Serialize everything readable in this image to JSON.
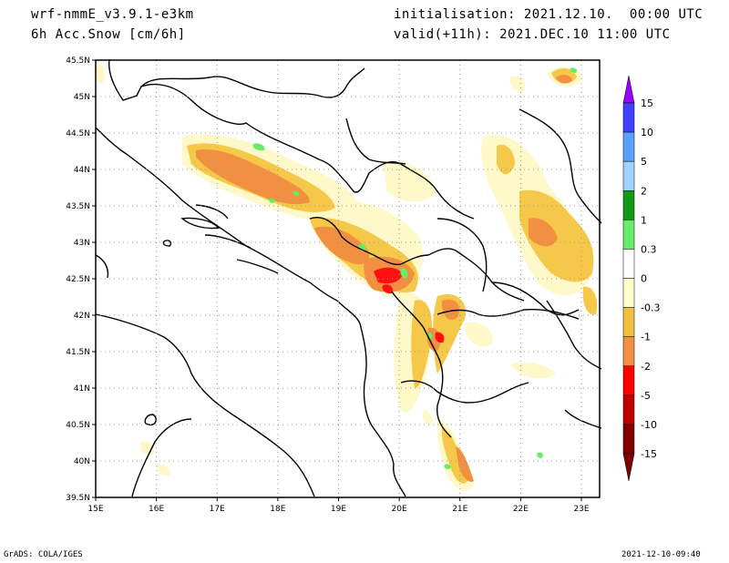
{
  "header": {
    "model": "wrf-nmmE_v3.9.1-e3km",
    "field": "6h Acc.Snow [cm/6h]",
    "init": "initialisation: 2021.12.10.  00:00 UTC",
    "valid": "valid(+11h): 2021.DEC.10 11:00 UTC"
  },
  "footer": {
    "left": "GrADS: COLA/IGES",
    "right": "2021-12-10-09:40"
  },
  "map": {
    "lat_labels": [
      "45.5N",
      "45N",
      "44.5N",
      "44N",
      "43.5N",
      "43N",
      "42.5N",
      "42N",
      "41.5N",
      "41N",
      "40.5N",
      "40N",
      "39.5N"
    ],
    "lon_labels": [
      "15E",
      "16E",
      "17E",
      "18E",
      "19E",
      "20E",
      "21E",
      "22E",
      "23E"
    ],
    "lat_range": [
      39.5,
      45.5
    ],
    "lon_range": [
      15,
      23.3
    ],
    "grid": true
  },
  "colorbar": {
    "labels": [
      "15",
      "10",
      "5",
      "2",
      "1",
      "0.3",
      "0",
      "-0.3",
      "-1",
      "-2",
      "-5",
      "-10",
      "-15"
    ],
    "colors": [
      "#9a00ff",
      "#4040ff",
      "#5aa0ff",
      "#a0d2ff",
      "#119911",
      "#66ee66",
      "#ffffff",
      "#ffffcc",
      "#f2c040",
      "#f09040",
      "#ff0000",
      "#c00000",
      "#800000"
    ]
  },
  "colors": {
    "light": "#fff8c8",
    "yellow": "#f5c84a",
    "orange": "#f0a050",
    "red": "#ff1010",
    "dark": "#b00000",
    "green": "#66ee66",
    "dkgreen": "#119911"
  }
}
